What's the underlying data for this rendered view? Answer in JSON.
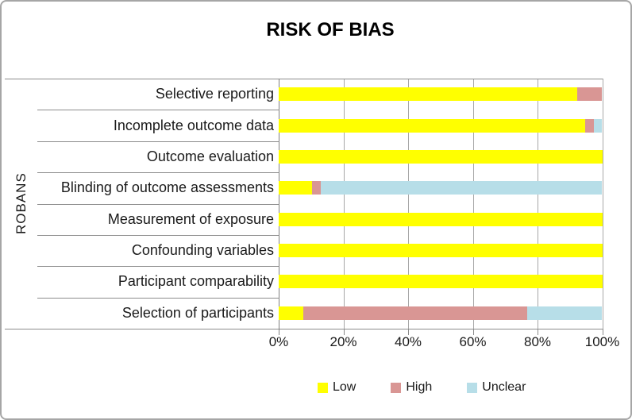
{
  "chart_data": {
    "type": "bar",
    "orientation": "horizontal",
    "stacked": true,
    "title": "RISK OF BIAS",
    "ylabel": "ROBANS",
    "xlabel": "",
    "xlim": [
      0,
      100
    ],
    "grid": true,
    "x_ticks": [
      "0%",
      "20%",
      "40%",
      "60%",
      "80%",
      "100%"
    ],
    "categories": [
      "Selective reporting",
      "Incomplete outcome data",
      "Outcome evaluation",
      "Blinding of outcome assessments",
      "Measurement of exposure",
      "Confounding variables",
      "Participant comparability",
      "Selection of participants"
    ],
    "series": [
      {
        "name": "Low",
        "color": "#ffff00",
        "values": [
          92.3,
          94.9,
          100,
          10.3,
          100,
          100,
          100,
          7.7
        ]
      },
      {
        "name": "High",
        "color": "#d99694",
        "values": [
          7.7,
          2.6,
          0,
          2.6,
          0,
          0,
          0,
          69.2
        ]
      },
      {
        "name": "Unclear",
        "color": "#b7dee8",
        "values": [
          0,
          2.6,
          0,
          87.2,
          0,
          0,
          0,
          23.1
        ]
      }
    ],
    "legend": {
      "position": "bottom",
      "entries": [
        "Low",
        "High",
        "Unclear"
      ]
    }
  }
}
